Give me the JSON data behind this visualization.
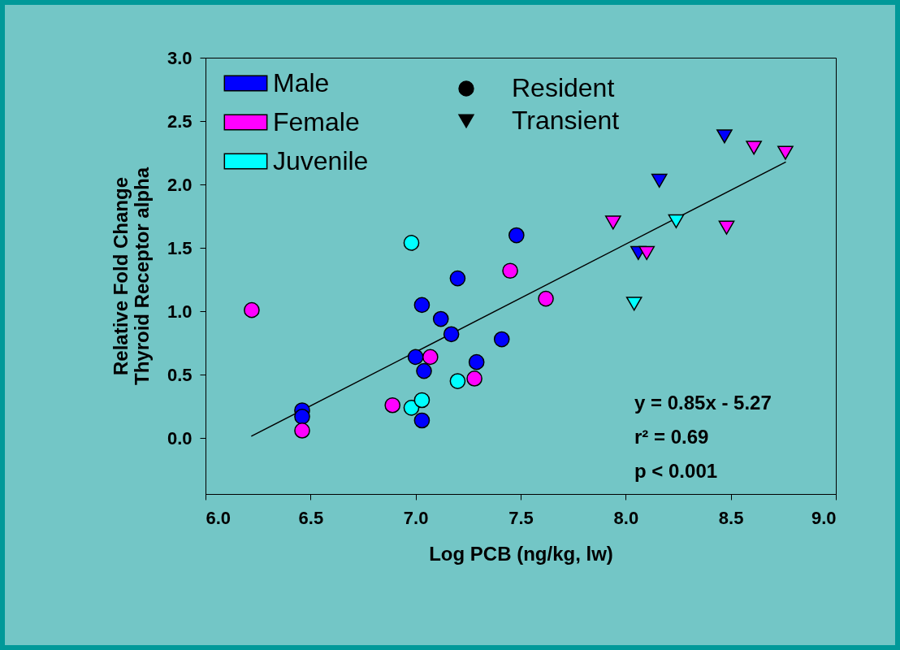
{
  "chart_data": {
    "type": "scatter",
    "xlabel": "Log PCB (ng/kg, lw)",
    "ylabel": "Relative Fold Change\nThyroid Receptor alpha",
    "xlim": [
      6.0,
      9.0
    ],
    "xticks": [
      {
        "value": 6,
        "label": "6.0"
      },
      {
        "value": 6.5,
        "label": "6.5"
      },
      {
        "value": 7,
        "label": "7.0"
      },
      {
        "value": 7.5,
        "label": "7.5"
      },
      {
        "value": 8,
        "label": "8.0"
      },
      {
        "value": 8.5,
        "label": "8.5"
      },
      {
        "value": 9,
        "label": "9.0"
      }
    ],
    "ylim": [
      -0.44,
      3.0
    ],
    "yticks": [
      {
        "value": 0,
        "label": "0.0"
      },
      {
        "value": 0.5,
        "label": "0.5"
      },
      {
        "value": 1,
        "label": "1.0"
      },
      {
        "value": 1.5,
        "label": "1.5"
      },
      {
        "value": 2,
        "label": "2.0"
      },
      {
        "value": 2.5,
        "label": "2.5"
      },
      {
        "value": 3,
        "label": "3.0"
      }
    ],
    "grid": false,
    "legend": "top left",
    "series": [
      {
        "name": "Male",
        "color": "#0000ff",
        "marker": "circle",
        "x": [
          6.46,
          6.46,
          7.03,
          7.12,
          7.17,
          7.0,
          7.04,
          7.03,
          7.29,
          7.41,
          7.2,
          7.48
        ],
        "values": [
          0.22,
          0.17,
          1.05,
          0.94,
          0.82,
          0.64,
          0.53,
          0.14,
          0.6,
          0.78,
          1.26,
          1.6
        ]
      },
      {
        "name": "Female",
        "color": "#ff00ff",
        "marker": "circle",
        "x": [
          6.22,
          6.46,
          6.89,
          7.07,
          7.28,
          7.45,
          7.62
        ],
        "values": [
          1.01,
          0.06,
          0.26,
          0.64,
          0.47,
          1.32,
          1.1
        ]
      },
      {
        "name": "Juvenile",
        "color": "#00ffff",
        "marker": "circle",
        "x": [
          6.98,
          6.98,
          7.03,
          7.2
        ],
        "values": [
          1.54,
          0.24,
          0.3,
          0.45
        ]
      },
      {
        "color": "#0000ff",
        "marker": "triangle",
        "x": [
          8.47,
          8.16,
          8.06
        ],
        "values": [
          2.38,
          2.03,
          1.46
        ]
      },
      {
        "color": "#ff00ff",
        "marker": "triangle",
        "x": [
          8.61,
          8.76,
          7.94,
          8.1,
          8.48
        ],
        "values": [
          2.29,
          2.25,
          1.7,
          1.46,
          1.66
        ]
      },
      {
        "color": "#00ffff",
        "marker": "triangle",
        "x": [
          8.24,
          8.04
        ],
        "values": [
          1.71,
          1.06
        ]
      },
      {
        "type": "line",
        "color": "#000000",
        "x": [
          6.22,
          8.76
        ],
        "values": [
          0.017,
          2.176
        ]
      }
    ],
    "annotations": [
      "y = 0.85x - 5.27",
      "r² = 0.69",
      "p < 0.001",
      "Resident",
      "Transient"
    ]
  }
}
